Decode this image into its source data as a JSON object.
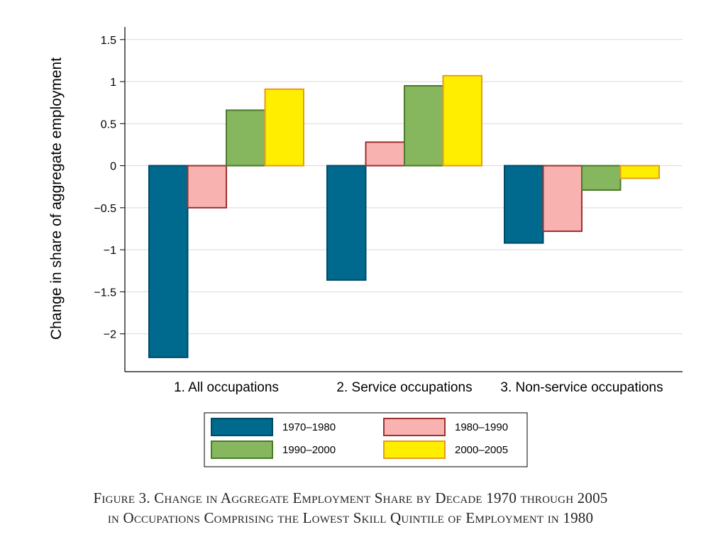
{
  "chart_data": {
    "type": "bar",
    "ylabel": "Change in share of aggregate employment",
    "xlabel": "",
    "ylim": [
      -2.45,
      1.65
    ],
    "yticks": [
      1.5,
      1,
      0.5,
      0,
      -0.5,
      -1,
      -1.5,
      -2
    ],
    "ytick_labels": [
      "1.5",
      "1",
      "0.5",
      "0",
      "−0.5",
      "−1",
      "−1.5",
      "−2"
    ],
    "grid": true,
    "legend_position": "bottom",
    "categories": [
      "1. All occupations",
      "2. Service occupations",
      "3. Non-service occupations"
    ],
    "series": [
      {
        "name": "1970–1980",
        "values": [
          -2.28,
          -1.36,
          -0.92
        ],
        "color": "#006a8e",
        "stroke": "#004a66"
      },
      {
        "name": "1980–1990",
        "values": [
          -0.5,
          0.28,
          -0.78
        ],
        "color": "#f8b2b0",
        "stroke": "#9c3030"
      },
      {
        "name": "1990–2000",
        "values": [
          0.66,
          0.95,
          -0.29
        ],
        "color": "#86b65e",
        "stroke": "#4a7a2a"
      },
      {
        "name": "2000–2005",
        "values": [
          0.91,
          1.07,
          -0.15
        ],
        "color": "#ffee00",
        "stroke": "#e39b20"
      }
    ]
  },
  "caption": {
    "line1": "Figure 3. Change in Aggregate Employment Share by Decade 1970 through 2005",
    "line2": "in Occupations Comprising the Lowest Skill Quintile of Employment in 1980"
  }
}
